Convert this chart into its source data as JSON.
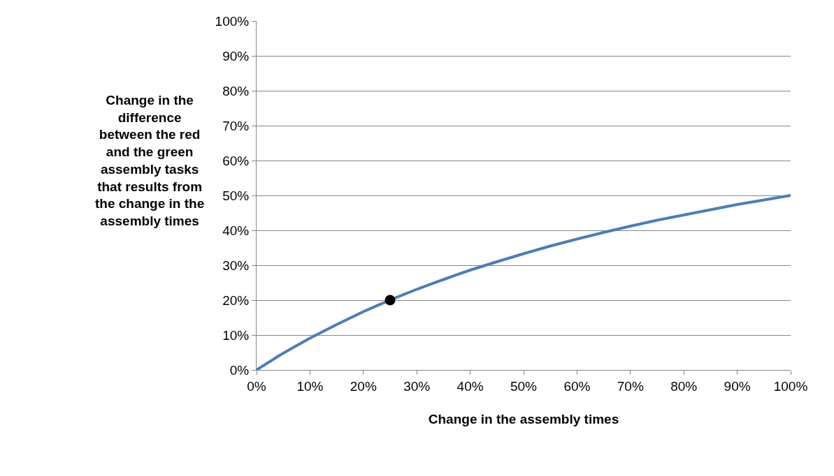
{
  "chart_data": {
    "type": "line",
    "xlabel": "Change in the assembly times",
    "ylabel": "Change in the\ndifference\nbetween the red\nand the green\nassembly tasks\nthat results from\nthe change in the\nassembly times",
    "x": [
      0,
      5,
      10,
      15,
      20,
      25,
      30,
      35,
      40,
      45,
      50,
      55,
      60,
      65,
      70,
      75,
      80,
      85,
      90,
      95,
      100
    ],
    "series": [
      {
        "color": "#4a7ebb",
        "values": [
          0,
          4.8,
          9.1,
          13,
          16.7,
          20,
          23.1,
          25.9,
          28.6,
          31,
          33.3,
          35.5,
          37.5,
          39.4,
          41.2,
          42.9,
          44.4,
          45.9,
          47.4,
          48.7,
          50
        ],
        "marker": "none",
        "line_style": "solid"
      },
      {
        "type": "scatter",
        "color": "#000000",
        "x": [
          25
        ],
        "values": [
          20
        ],
        "marker": "circle"
      }
    ],
    "xlim": [
      0,
      100
    ],
    "ylim": [
      0,
      100
    ],
    "xticks": [
      {
        "value": 0,
        "label": "0%"
      },
      {
        "value": 10,
        "label": "10%"
      },
      {
        "value": 20,
        "label": "20%"
      },
      {
        "value": 30,
        "label": "30%"
      },
      {
        "value": 40,
        "label": "40%"
      },
      {
        "value": 50,
        "label": "50%"
      },
      {
        "value": 60,
        "label": "60%"
      },
      {
        "value": 70,
        "label": "70%"
      },
      {
        "value": 80,
        "label": "80%"
      },
      {
        "value": 90,
        "label": "90%"
      },
      {
        "value": 100,
        "label": "100%"
      }
    ],
    "yticks": [
      {
        "value": 0,
        "label": "0%"
      },
      {
        "value": 10,
        "label": "10%"
      },
      {
        "value": 20,
        "label": "20%"
      },
      {
        "value": 30,
        "label": "30%"
      },
      {
        "value": 40,
        "label": "40%"
      },
      {
        "value": 50,
        "label": "50%"
      },
      {
        "value": 60,
        "label": "60%"
      },
      {
        "value": 70,
        "label": "70%"
      },
      {
        "value": 80,
        "label": "80%"
      },
      {
        "value": 90,
        "label": "90%"
      },
      {
        "value": 100,
        "label": "100%"
      }
    ],
    "grid": "y"
  }
}
